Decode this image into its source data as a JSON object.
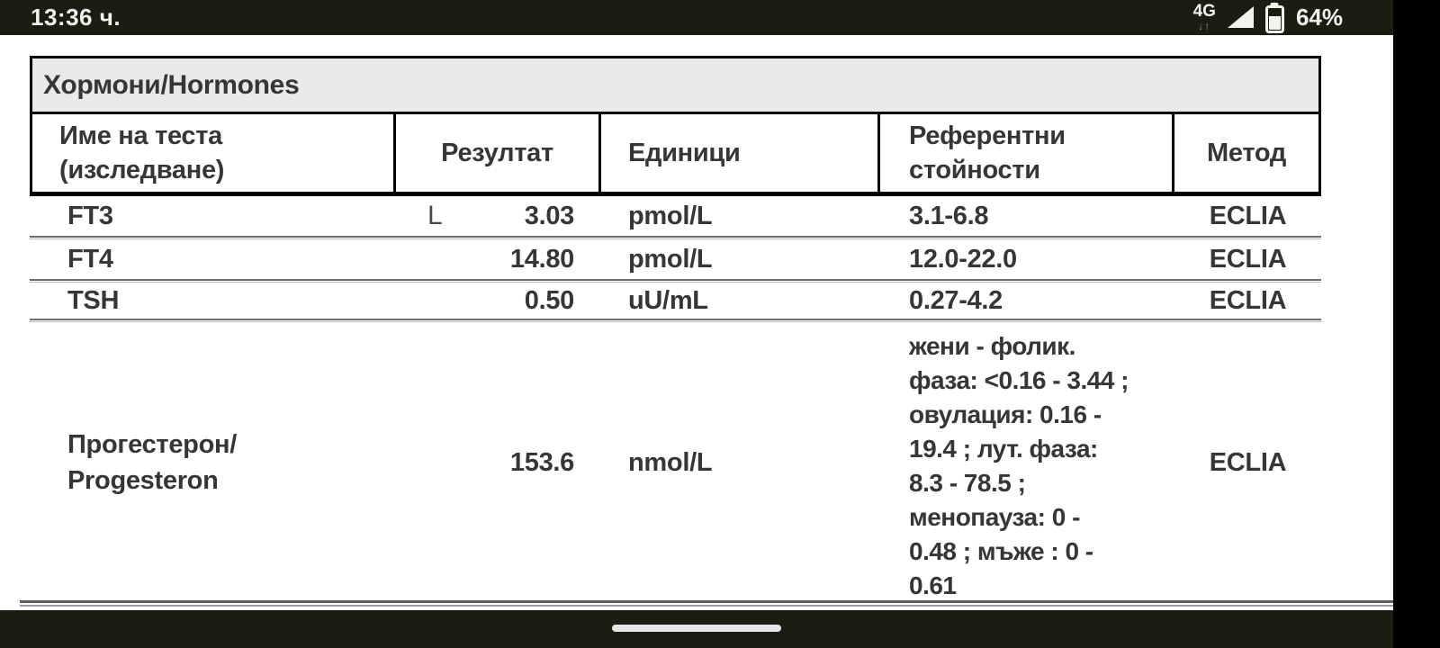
{
  "status_bar": {
    "time": "13:36 ч.",
    "network_type": "4G",
    "activity_arrows": "↓↑",
    "battery_percent": "64%",
    "bg_color": "#1a1d11"
  },
  "table": {
    "title": "Хормони/Hormones",
    "title_band_bg": "#e9e9e9",
    "columns": [
      {
        "label": [
          "Име на теста",
          "(изследване)"
        ]
      },
      {
        "label": [
          "Резултат"
        ]
      },
      {
        "label": [
          "Единици"
        ]
      },
      {
        "label": [
          "Референтни",
          "стойности"
        ]
      },
      {
        "label": [
          "Метод"
        ]
      }
    ],
    "rows": [
      {
        "name": [
          "FT3"
        ],
        "flag": "L",
        "result": "3.03",
        "units": "pmol/L",
        "reference": [
          "3.1-6.8"
        ],
        "method": "ECLIA"
      },
      {
        "name": [
          "FT4"
        ],
        "flag": "",
        "result": "14.80",
        "units": "pmol/L",
        "reference": [
          "12.0-22.0"
        ],
        "method": "ECLIA"
      },
      {
        "name": [
          "TSH"
        ],
        "flag": "",
        "result": "0.50",
        "units": "uU/mL",
        "reference": [
          "0.27-4.2"
        ],
        "method": "ECLIA"
      },
      {
        "name": [
          "Прогестерон/",
          "Progesteron"
        ],
        "flag": "",
        "result": "153.6",
        "units": "nmol/L",
        "reference": [
          "жени - фолик.",
          "фаза: <0.16 - 3.44 ;",
          "овулация: 0.16 -",
          "19.4 ; лут. фаза:",
          "8.3 - 78.5 ;",
          "менопауза: 0 -",
          "0.48 ; мъже : 0 -",
          "0.61"
        ],
        "method": "ECLIA"
      }
    ]
  },
  "nav_bar": {
    "home_indicator_color": "#e6e6e6"
  }
}
